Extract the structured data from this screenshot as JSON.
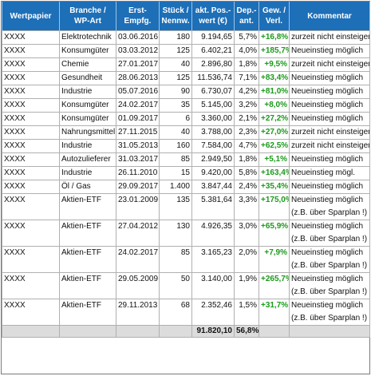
{
  "headers": {
    "wertpapier": "Wertpapier",
    "branche_1": "Branche /",
    "branche_2": "WP-Art",
    "erst_1": "Erst-",
    "erst_2": "Empfg.",
    "stueck_1": "Stück /",
    "stueck_2": "Nennw.",
    "akt_1": "akt. Pos.-",
    "akt_2": "wert (€)",
    "dep_1": "Dep.-",
    "dep_2": "ant.",
    "gew_1": "Gew. /",
    "gew_2": "Verl.",
    "kommentar": "Kommentar"
  },
  "rows": [
    {
      "wp": "XXXX",
      "branche": "Elektrotechnik",
      "datum": "03.06.2016",
      "stueck": "180",
      "wert": "9.194,65",
      "anteil": "5,7%",
      "gewinn": "+16,8%",
      "kommentar": [
        "zurzeit nicht einsteigen"
      ]
    },
    {
      "wp": "XXXX",
      "branche": "Konsumgüter",
      "datum": "03.03.2012",
      "stueck": "125",
      "wert": "6.402,21",
      "anteil": "4,0%",
      "gewinn": "+185,7%",
      "kommentar": [
        "Neueinstieg möglich"
      ]
    },
    {
      "wp": "XXXX",
      "branche": "Chemie",
      "datum": "27.01.2017",
      "stueck": "40",
      "wert": "2.896,80",
      "anteil": "1,8%",
      "gewinn": "+9,5%",
      "kommentar": [
        "zurzeit nicht einsteigen"
      ]
    },
    {
      "wp": "XXXX",
      "branche": "Gesundheit",
      "datum": "28.06.2013",
      "stueck": "125",
      "wert": "11.536,74",
      "anteil": "7,1%",
      "gewinn": "+83,4%",
      "kommentar": [
        "Neueinstieg möglich"
      ]
    },
    {
      "wp": "XXXX",
      "branche": "Industrie",
      "datum": "05.07.2016",
      "stueck": "90",
      "wert": "6.730,07",
      "anteil": "4,2%",
      "gewinn": "+81,0%",
      "kommentar": [
        "Neueinstieg möglich"
      ]
    },
    {
      "wp": "XXXX",
      "branche": "Konsumgüter",
      "datum": "24.02.2017",
      "stueck": "35",
      "wert": "5.145,00",
      "anteil": "3,2%",
      "gewinn": "+8,0%",
      "kommentar": [
        "Neueinstieg möglich"
      ]
    },
    {
      "wp": "XXXX",
      "branche": "Konsumgüter",
      "datum": "01.09.2017",
      "stueck": "6",
      "wert": "3.360,00",
      "anteil": "2,1%",
      "gewinn": "+27,2%",
      "kommentar": [
        "Neueinstieg möglich"
      ]
    },
    {
      "wp": "XXXX",
      "branche": "Nahrungsmittel",
      "datum": "27.11.2015",
      "stueck": "40",
      "wert": "3.788,00",
      "anteil": "2,3%",
      "gewinn": "+27,0%",
      "kommentar": [
        "zurzeit nicht einsteigen"
      ]
    },
    {
      "wp": "XXXX",
      "branche": "Industrie",
      "datum": "31.05.2013",
      "stueck": "160",
      "wert": "7.584,00",
      "anteil": "4,7%",
      "gewinn": "+62,5%",
      "kommentar": [
        "zurzeit nicht einsteigen"
      ]
    },
    {
      "wp": "XXXX",
      "branche": "Autozulieferer",
      "datum": "31.03.2017",
      "stueck": "85",
      "wert": "2.949,50",
      "anteil": "1,8%",
      "gewinn": "+5,1%",
      "kommentar": [
        "Neueinstieg möglich"
      ]
    },
    {
      "wp": "XXXX",
      "branche": "Industrie",
      "datum": "26.11.2010",
      "stueck": "15",
      "wert": "9.420,00",
      "anteil": "5,8%",
      "gewinn": "+163,4%",
      "kommentar": [
        "Neueinstieg mögl."
      ]
    },
    {
      "wp": "XXXX",
      "branche": "Öl / Gas",
      "datum": "29.09.2017",
      "stueck": "1.400",
      "wert": "3.847,44",
      "anteil": "2,4%",
      "gewinn": "+35,4%",
      "kommentar": [
        "Neueinstieg möglich"
      ]
    },
    {
      "wp": "XXXX",
      "branche": "Aktien-ETF",
      "datum": "23.01.2009",
      "stueck": "135",
      "wert": "5.381,64",
      "anteil": "3,3%",
      "gewinn": "+175,0%",
      "kommentar": [
        "Neueinstieg möglich",
        "(z.B. über Sparplan !)"
      ]
    },
    {
      "wp": "XXXX",
      "branche": "Aktien-ETF",
      "datum": "27.04.2012",
      "stueck": "130",
      "wert": "4.926,35",
      "anteil": "3,0%",
      "gewinn": "+65,9%",
      "kommentar": [
        "Neueinstieg möglich",
        "(z.B. über Sparplan !)"
      ]
    },
    {
      "wp": "XXXX",
      "branche": "Aktien-ETF",
      "datum": "24.02.2017",
      "stueck": "85",
      "wert": "3.165,23",
      "anteil": "2,0%",
      "gewinn": "+7,9%",
      "kommentar": [
        "Neueinstieg möglich",
        "(z.B. über Sparplan !)"
      ]
    },
    {
      "wp": "XXXX",
      "branche": "Aktien-ETF",
      "datum": "29.05.2009",
      "stueck": "50",
      "wert": "3.140,00",
      "anteil": "1,9%",
      "gewinn": "+265,7%",
      "kommentar": [
        "Neueinstieg möglich",
        "(z.B. über Sparplan !)"
      ]
    },
    {
      "wp": "XXXX",
      "branche": "Aktien-ETF",
      "datum": "29.11.2013",
      "stueck": "68",
      "wert": "2.352,46",
      "anteil": "1,5%",
      "gewinn": "+31,7%",
      "kommentar": [
        "Neueinstieg möglich",
        "(z.B. über Sparplan !)"
      ]
    }
  ],
  "totals": {
    "wert": "91.820,10",
    "anteil": "56,8%"
  },
  "colors": {
    "header_bg": "#1d6fb8",
    "gain": "#1a9a1a",
    "footer_bg": "#dcdcdc"
  }
}
